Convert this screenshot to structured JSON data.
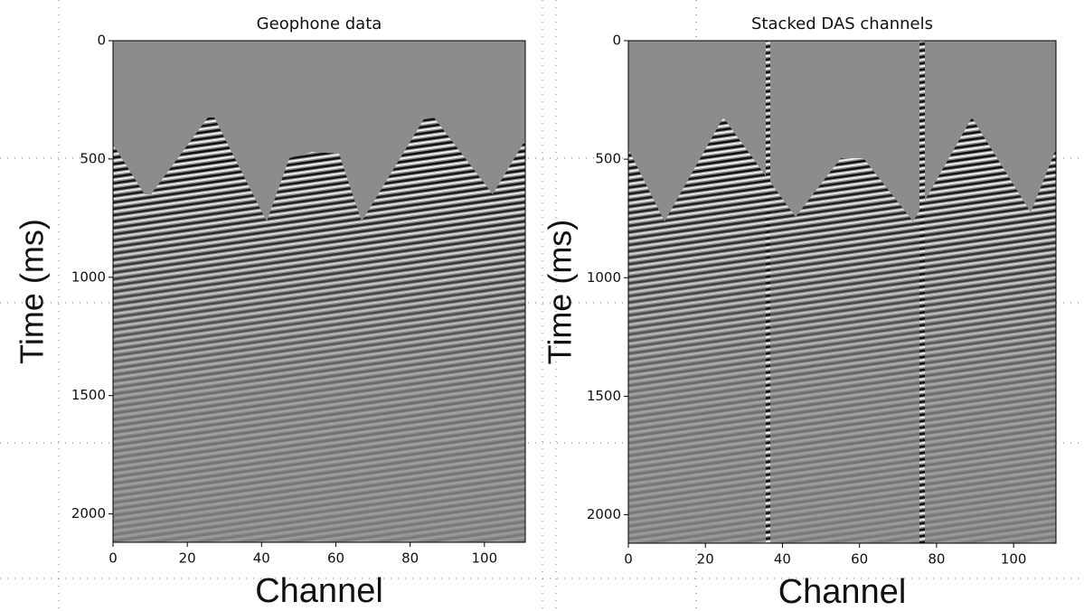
{
  "chart_data": [
    {
      "type": "seismic",
      "title": "Geophone data",
      "xlabel": "Channel",
      "ylabel": "Time (ms)",
      "xlim": [
        0,
        111
      ],
      "ylim": [
        2120,
        0
      ],
      "xticks": [
        0,
        20,
        40,
        60,
        80,
        100
      ],
      "yticks": [
        0,
        500,
        1000,
        1500,
        2000
      ]
    },
    {
      "type": "seismic",
      "title": "Stacked DAS channels",
      "xlabel": "Channel",
      "ylabel": "Time (ms)",
      "xlim": [
        0,
        111
      ],
      "ylim": [
        2120,
        0
      ],
      "xticks": [
        0,
        20,
        40,
        60,
        80,
        100
      ],
      "yticks": [
        0,
        500,
        1000,
        1500,
        2000
      ]
    }
  ]
}
